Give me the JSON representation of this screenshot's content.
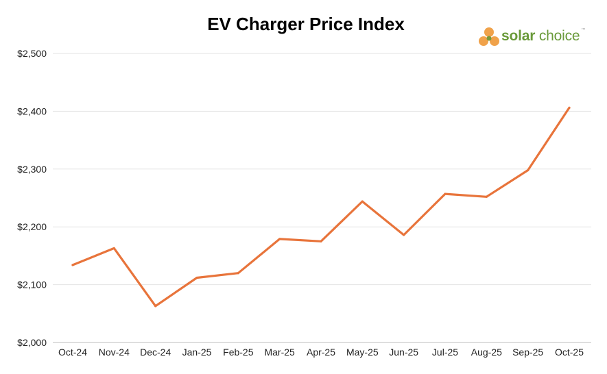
{
  "title": "EV Charger Price Index",
  "logo": {
    "word1": "solar",
    "word2": "choice",
    "trademark": "™"
  },
  "colors": {
    "line": "#E8743B",
    "grid": "#e3e3e3",
    "text": "#222222"
  },
  "chart_data": {
    "type": "line",
    "title": "EV Charger Price Index",
    "xlabel": "",
    "ylabel": "",
    "categories": [
      "Oct-24",
      "Nov-24",
      "Dec-24",
      "Jan-25",
      "Feb-25",
      "Mar-25",
      "Apr-25",
      "May-25",
      "Jun-25",
      "Jul-25",
      "Aug-25",
      "Sep-25",
      "Oct-25"
    ],
    "series": [
      {
        "name": "",
        "values": [
          2134,
          2163,
          2063,
          2112,
          2120,
          2179,
          2175,
          2244,
          2186,
          2257,
          2252,
          2298,
          2406
        ]
      }
    ],
    "ylim": [
      2000,
      2500
    ],
    "yticks": [
      2000,
      2100,
      2200,
      2300,
      2400,
      2500
    ],
    "ytick_labels": [
      "$2,000",
      "$2,100",
      "$2,200",
      "$2,300",
      "$2,400",
      "$2,500"
    ],
    "grid": "horizontal",
    "legend": "none"
  }
}
